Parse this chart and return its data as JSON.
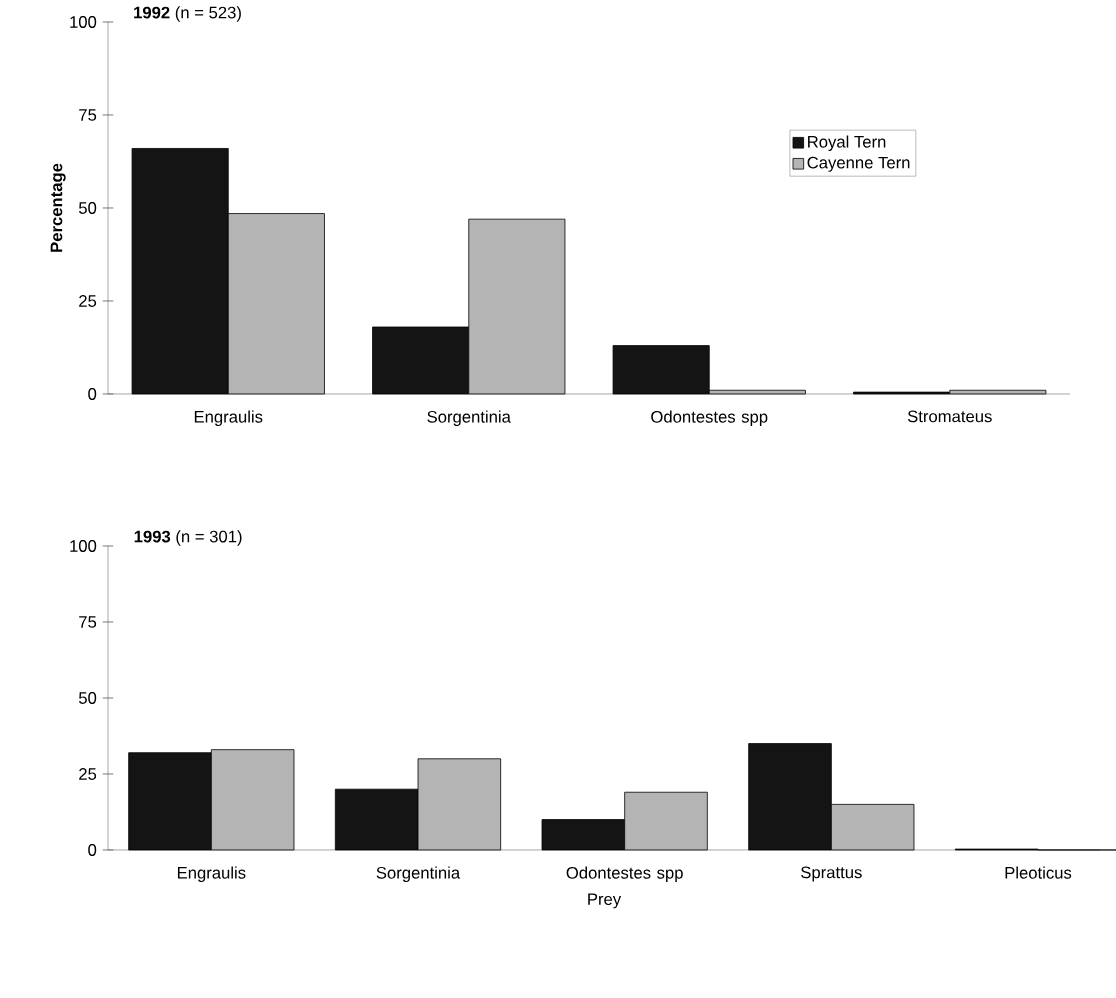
{
  "chart_data": [
    {
      "type": "bar",
      "title": "**1992**  (n = 523)",
      "ylabel": "Percentage",
      "categories": [
        "Engraulis",
        "Sorgentinia",
        "Odontestes spp",
        "Stromateus"
      ],
      "series": [
        {
          "name": "Royal Tern",
          "color": "#141414",
          "values": [
            66,
            18,
            13,
            0.5
          ]
        },
        {
          "name": "Cayenne Tern",
          "color": "#b4b4b4",
          "values": [
            48.5,
            47,
            1,
            1
          ]
        }
      ],
      "ylim": [
        0,
        100
      ],
      "yticks": [
        0,
        25,
        50,
        75,
        100
      ],
      "legend": "top right"
    },
    {
      "type": "bar",
      "title": "**1993**  (n = 301)",
      "xlabel": "Prey",
      "categories": [
        "Engraulis",
        "Sorgentinia",
        "Odontestes spp",
        "Sprattus",
        "Pleoticus"
      ],
      "series": [
        {
          "color": "#141414",
          "values": [
            32,
            20,
            10,
            35,
            0.3
          ]
        },
        {
          "color": "#b4b4b4",
          "values": [
            33,
            30,
            19,
            15,
            0
          ]
        }
      ],
      "ylim": [
        0,
        100
      ],
      "yticks": [
        0,
        25,
        50,
        75,
        100
      ],
      "legend": false
    }
  ]
}
